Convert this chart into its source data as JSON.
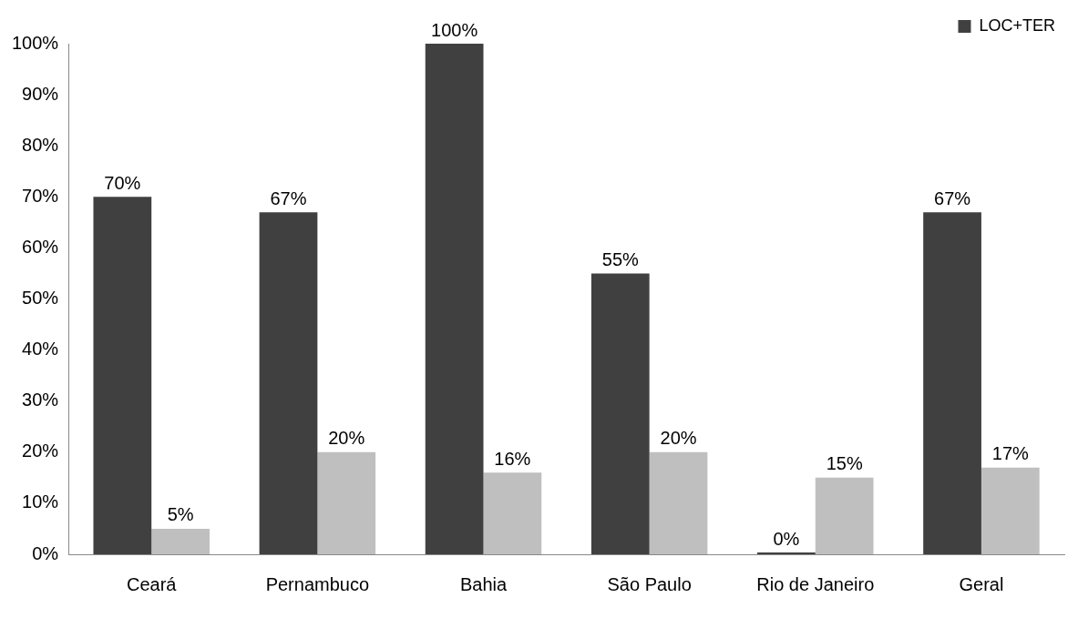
{
  "chart_data": {
    "type": "bar",
    "categories": [
      "Ceará",
      "Pernambuco",
      "Bahia",
      "São Paulo",
      "Rio de Janeiro",
      "Geral"
    ],
    "series": [
      {
        "name": "LOC+TER",
        "color": "#404040",
        "values": [
          70,
          67,
          100,
          55,
          0,
          67
        ],
        "value_labels": [
          "70%",
          "67%",
          "100%",
          "55%",
          "0%",
          "67%"
        ]
      },
      {
        "color": "#bfbfbf",
        "values": [
          5,
          20,
          16,
          20,
          15,
          17
        ],
        "value_labels": [
          "5%",
          "20%",
          "16%",
          "20%",
          "15%",
          "17%"
        ]
      }
    ],
    "ylim": [
      0,
      100
    ],
    "yticks": [
      {
        "value": 0,
        "label": "0%"
      },
      {
        "value": 10,
        "label": "10%"
      },
      {
        "value": 20,
        "label": "20%"
      },
      {
        "value": 30,
        "label": "30%"
      },
      {
        "value": 40,
        "label": "40%"
      },
      {
        "value": 50,
        "label": "50%"
      },
      {
        "value": 60,
        "label": "60%"
      },
      {
        "value": 70,
        "label": "70%"
      },
      {
        "value": 80,
        "label": "80%"
      },
      {
        "value": 90,
        "label": "90%"
      },
      {
        "value": 100,
        "label": "100%"
      }
    ],
    "grid": false,
    "legend": "top right"
  }
}
